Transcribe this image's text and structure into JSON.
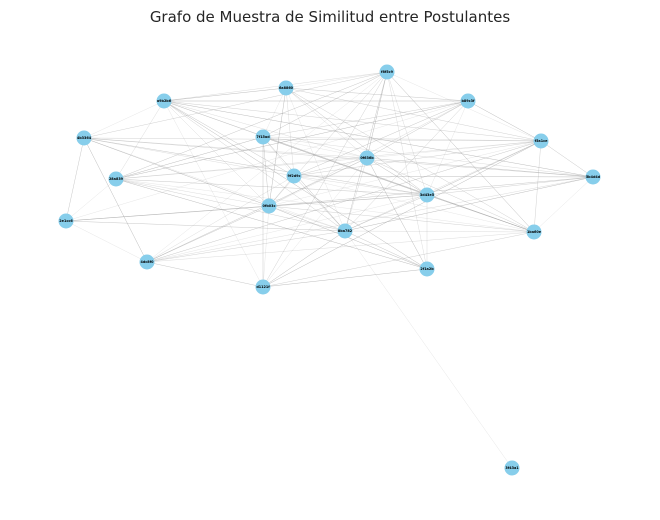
{
  "title": "Grafo de Muestra de Similitud entre Postulantes",
  "colors": {
    "node": "#87ceeb",
    "edge": "#9a9a9a",
    "label": "#000000"
  },
  "graph": {
    "nodes": [
      {
        "id": "n1",
        "label": "f8f5c9"
      },
      {
        "id": "n2",
        "label": "6a8860"
      },
      {
        "id": "n3",
        "label": "a9b2b6"
      },
      {
        "id": "n4",
        "label": "b89c3f"
      },
      {
        "id": "n5",
        "label": "4b3364"
      },
      {
        "id": "n6",
        "label": "7f15ad"
      },
      {
        "id": "n7",
        "label": "0f636b"
      },
      {
        "id": "n8",
        "label": "f5a1ce"
      },
      {
        "id": "n9",
        "label": "28a839"
      },
      {
        "id": "n10",
        "label": "9f2d9c"
      },
      {
        "id": "n11",
        "label": "5b4d4d"
      },
      {
        "id": "n12",
        "label": "3d43e5"
      },
      {
        "id": "n13",
        "label": "2e1cc6"
      },
      {
        "id": "n14",
        "label": "0fb03c"
      },
      {
        "id": "n15",
        "label": "8ba782"
      },
      {
        "id": "n16",
        "label": "1ba60e"
      },
      {
        "id": "n17",
        "label": "4dc8f0"
      },
      {
        "id": "n18",
        "label": "2f1a2b"
      },
      {
        "id": "n19",
        "label": "d1121f"
      },
      {
        "id": "n20",
        "label": "3f43a1"
      }
    ],
    "edges": [
      [
        "n1",
        "n2"
      ],
      [
        "n1",
        "n3"
      ],
      [
        "n1",
        "n5"
      ],
      [
        "n1",
        "n6"
      ],
      [
        "n1",
        "n7"
      ],
      [
        "n1",
        "n8"
      ],
      [
        "n1",
        "n12"
      ],
      [
        "n1",
        "n14"
      ],
      [
        "n1",
        "n15"
      ],
      [
        "n1",
        "n16"
      ],
      [
        "n1",
        "n17"
      ],
      [
        "n1",
        "n18"
      ],
      [
        "n1",
        "n19"
      ],
      [
        "n1",
        "n9"
      ],
      [
        "n2",
        "n3"
      ],
      [
        "n2",
        "n6"
      ],
      [
        "n2",
        "n7"
      ],
      [
        "n2",
        "n8"
      ],
      [
        "n2",
        "n12"
      ],
      [
        "n2",
        "n14"
      ],
      [
        "n2",
        "n15"
      ],
      [
        "n2",
        "n10"
      ],
      [
        "n2",
        "n16"
      ],
      [
        "n2",
        "n4"
      ],
      [
        "n3",
        "n4"
      ],
      [
        "n3",
        "n5"
      ],
      [
        "n3",
        "n7"
      ],
      [
        "n3",
        "n8"
      ],
      [
        "n3",
        "n10"
      ],
      [
        "n3",
        "n11"
      ],
      [
        "n3",
        "n12"
      ],
      [
        "n3",
        "n14"
      ],
      [
        "n3",
        "n15"
      ],
      [
        "n3",
        "n16"
      ],
      [
        "n3",
        "n18"
      ],
      [
        "n3",
        "n19"
      ],
      [
        "n3",
        "n9"
      ],
      [
        "n4",
        "n6"
      ],
      [
        "n4",
        "n7"
      ],
      [
        "n4",
        "n8"
      ],
      [
        "n4",
        "n12"
      ],
      [
        "n4",
        "n14"
      ],
      [
        "n4",
        "n15"
      ],
      [
        "n4",
        "n10"
      ],
      [
        "n4",
        "n9"
      ],
      [
        "n4",
        "n13"
      ],
      [
        "n5",
        "n7"
      ],
      [
        "n5",
        "n8"
      ],
      [
        "n5",
        "n12"
      ],
      [
        "n5",
        "n14"
      ],
      [
        "n5",
        "n15"
      ],
      [
        "n5",
        "n10"
      ],
      [
        "n5",
        "n11"
      ],
      [
        "n5",
        "n13"
      ],
      [
        "n5",
        "n17"
      ],
      [
        "n6",
        "n7"
      ],
      [
        "n6",
        "n8"
      ],
      [
        "n6",
        "n12"
      ],
      [
        "n6",
        "n14"
      ],
      [
        "n6",
        "n15"
      ],
      [
        "n6",
        "n10"
      ],
      [
        "n6",
        "n11"
      ],
      [
        "n6",
        "n16"
      ],
      [
        "n6",
        "n19"
      ],
      [
        "n6",
        "n9"
      ],
      [
        "n7",
        "n8"
      ],
      [
        "n7",
        "n9"
      ],
      [
        "n7",
        "n10"
      ],
      [
        "n7",
        "n11"
      ],
      [
        "n7",
        "n12"
      ],
      [
        "n7",
        "n14"
      ],
      [
        "n7",
        "n15"
      ],
      [
        "n7",
        "n16"
      ],
      [
        "n7",
        "n17"
      ],
      [
        "n7",
        "n18"
      ],
      [
        "n7",
        "n19"
      ],
      [
        "n8",
        "n9"
      ],
      [
        "n8",
        "n10"
      ],
      [
        "n8",
        "n11"
      ],
      [
        "n8",
        "n12"
      ],
      [
        "n8",
        "n14"
      ],
      [
        "n8",
        "n15"
      ],
      [
        "n8",
        "n16"
      ],
      [
        "n8",
        "n17"
      ],
      [
        "n8",
        "n19"
      ],
      [
        "n9",
        "n13"
      ],
      [
        "n9",
        "n14"
      ],
      [
        "n9",
        "n15"
      ],
      [
        "n9",
        "n12"
      ],
      [
        "n9",
        "n18"
      ],
      [
        "n9",
        "n16"
      ],
      [
        "n10",
        "n12"
      ],
      [
        "n10",
        "n14"
      ],
      [
        "n10",
        "n15"
      ],
      [
        "n10",
        "n11"
      ],
      [
        "n10",
        "n16"
      ],
      [
        "n10",
        "n17"
      ],
      [
        "n11",
        "n12"
      ],
      [
        "n11",
        "n14"
      ],
      [
        "n11",
        "n15"
      ],
      [
        "n11",
        "n16"
      ],
      [
        "n11",
        "n17"
      ],
      [
        "n12",
        "n14"
      ],
      [
        "n12",
        "n15"
      ],
      [
        "n12",
        "n16"
      ],
      [
        "n12",
        "n17"
      ],
      [
        "n12",
        "n18"
      ],
      [
        "n12",
        "n13"
      ],
      [
        "n13",
        "n15"
      ],
      [
        "n13",
        "n14"
      ],
      [
        "n13",
        "n17"
      ],
      [
        "n14",
        "n15"
      ],
      [
        "n14",
        "n16"
      ],
      [
        "n14",
        "n17"
      ],
      [
        "n14",
        "n18"
      ],
      [
        "n14",
        "n19"
      ],
      [
        "n15",
        "n16"
      ],
      [
        "n15",
        "n17"
      ],
      [
        "n15",
        "n18"
      ],
      [
        "n15",
        "n19"
      ],
      [
        "n15",
        "n20"
      ],
      [
        "n16",
        "n17"
      ],
      [
        "n16",
        "n19"
      ],
      [
        "n17",
        "n19"
      ],
      [
        "n18",
        "n19"
      ]
    ]
  }
}
